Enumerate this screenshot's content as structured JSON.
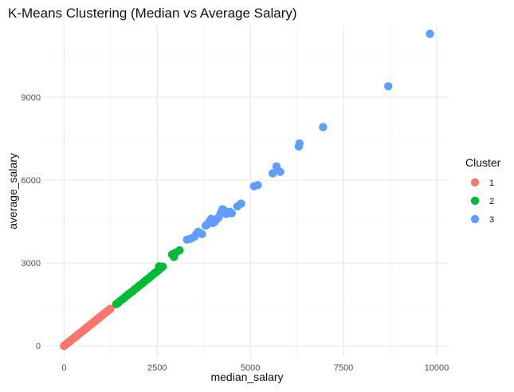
{
  "chart_data": {
    "type": "scatter",
    "title": "K-Means Clustering (Median vs Average Salary)",
    "xlabel": "median_salary",
    "ylabel": "average_salary",
    "xlim": [
      -500,
      10300
    ],
    "ylim": [
      -400,
      11600
    ],
    "x_ticks": [
      0,
      2500,
      5000,
      7500,
      10000
    ],
    "y_ticks": [
      0,
      3000,
      6000,
      9000
    ],
    "grid": true,
    "legend": {
      "title": "Cluster",
      "placement": "right",
      "entries": [
        {
          "label": "1",
          "color": "#F8766D"
        },
        {
          "label": "2",
          "color": "#00BA38"
        },
        {
          "label": "3",
          "color": "#619CFF"
        }
      ]
    },
    "series": [
      {
        "name": "1",
        "color": "#F8766D",
        "points": [
          [
            0,
            0
          ],
          [
            20,
            20
          ],
          [
            40,
            45
          ],
          [
            60,
            65
          ],
          [
            80,
            90
          ],
          [
            100,
            110
          ],
          [
            120,
            130
          ],
          [
            140,
            150
          ],
          [
            160,
            175
          ],
          [
            180,
            195
          ],
          [
            200,
            215
          ],
          [
            220,
            240
          ],
          [
            240,
            260
          ],
          [
            260,
            280
          ],
          [
            280,
            300
          ],
          [
            300,
            325
          ],
          [
            320,
            345
          ],
          [
            340,
            365
          ],
          [
            360,
            390
          ],
          [
            380,
            410
          ],
          [
            400,
            430
          ],
          [
            420,
            455
          ],
          [
            440,
            475
          ],
          [
            460,
            495
          ],
          [
            480,
            520
          ],
          [
            500,
            540
          ],
          [
            520,
            560
          ],
          [
            540,
            585
          ],
          [
            560,
            605
          ],
          [
            580,
            625
          ],
          [
            600,
            650
          ],
          [
            620,
            670
          ],
          [
            640,
            690
          ],
          [
            660,
            715
          ],
          [
            680,
            735
          ],
          [
            700,
            755
          ],
          [
            720,
            780
          ],
          [
            740,
            800
          ],
          [
            760,
            820
          ],
          [
            780,
            845
          ],
          [
            800,
            865
          ],
          [
            820,
            885
          ],
          [
            840,
            910
          ],
          [
            860,
            930
          ],
          [
            880,
            950
          ],
          [
            900,
            975
          ],
          [
            920,
            995
          ],
          [
            940,
            1015
          ],
          [
            960,
            1040
          ],
          [
            980,
            1060
          ],
          [
            1000,
            1080
          ],
          [
            1030,
            1115
          ],
          [
            1060,
            1145
          ],
          [
            1090,
            1180
          ],
          [
            1120,
            1210
          ],
          [
            1150,
            1245
          ],
          [
            1180,
            1275
          ],
          [
            1210,
            1305
          ],
          [
            1240,
            1340
          ]
        ]
      },
      {
        "name": "2",
        "color": "#00BA38",
        "points": [
          [
            1400,
            1510
          ],
          [
            1450,
            1560
          ],
          [
            1500,
            1620
          ],
          [
            1550,
            1670
          ],
          [
            1600,
            1720
          ],
          [
            1650,
            1780
          ],
          [
            1700,
            1840
          ],
          [
            1750,
            1890
          ],
          [
            1800,
            1940
          ],
          [
            1850,
            1990
          ],
          [
            1900,
            2050
          ],
          [
            1950,
            2100
          ],
          [
            2000,
            2160
          ],
          [
            2050,
            2210
          ],
          [
            2100,
            2260
          ],
          [
            2150,
            2320
          ],
          [
            2200,
            2380
          ],
          [
            2250,
            2430
          ],
          [
            2300,
            2480
          ],
          [
            2350,
            2540
          ],
          [
            2400,
            2600
          ],
          [
            2450,
            2650
          ],
          [
            2500,
            2700
          ],
          [
            2550,
            2760
          ],
          [
            2600,
            2820
          ],
          [
            2550,
            2880
          ],
          [
            2650,
            2870
          ],
          [
            2900,
            3310
          ],
          [
            2950,
            3220
          ],
          [
            3000,
            3380
          ],
          [
            3100,
            3460
          ]
        ]
      },
      {
        "name": "3",
        "color": "#619CFF",
        "points": [
          [
            3300,
            3850
          ],
          [
            3400,
            3880
          ],
          [
            3500,
            3950
          ],
          [
            3550,
            4050
          ],
          [
            3600,
            4130
          ],
          [
            3700,
            4050
          ],
          [
            3800,
            4350
          ],
          [
            3850,
            4400
          ],
          [
            3900,
            4500
          ],
          [
            3950,
            4600
          ],
          [
            4000,
            4450
          ],
          [
            4050,
            4500
          ],
          [
            4100,
            4600
          ],
          [
            4150,
            4650
          ],
          [
            4200,
            4800
          ],
          [
            4250,
            4950
          ],
          [
            4300,
            4900
          ],
          [
            4350,
            4780
          ],
          [
            4450,
            4850
          ],
          [
            4500,
            4800
          ],
          [
            4650,
            5050
          ],
          [
            4750,
            5150
          ],
          [
            5100,
            5780
          ],
          [
            5200,
            5820
          ],
          [
            5600,
            6250
          ],
          [
            5700,
            6500
          ],
          [
            5800,
            6300
          ],
          [
            6300,
            7220
          ],
          [
            6320,
            7330
          ],
          [
            6950,
            7920
          ],
          [
            8700,
            9400
          ],
          [
            9820,
            11300
          ]
        ]
      }
    ]
  }
}
